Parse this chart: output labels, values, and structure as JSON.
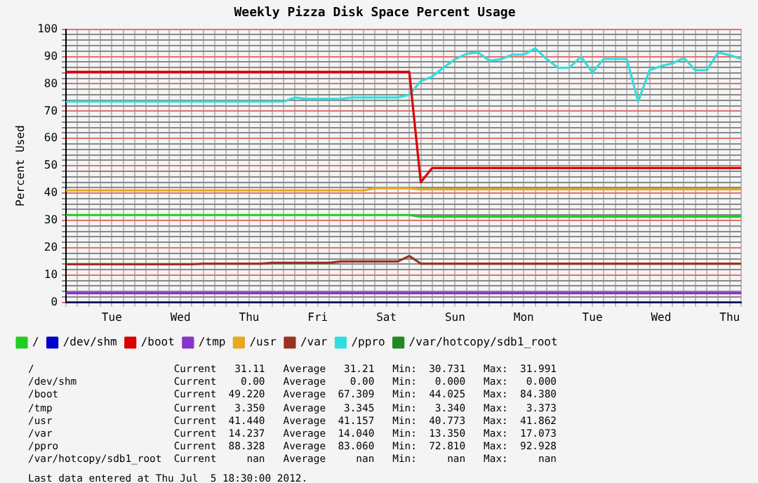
{
  "chart_data": {
    "type": "line",
    "title": "Weekly Pizza Disk Space Percent Usage",
    "ylabel": "Percent Used",
    "categories": [
      null,
      null,
      null,
      null,
      "Tue",
      null,
      null,
      null,
      null,
      null,
      "Wed",
      null,
      null,
      null,
      null,
      null,
      "Thu",
      null,
      null,
      null,
      null,
      null,
      "Fri",
      null,
      null,
      null,
      null,
      null,
      "Sat",
      null,
      null,
      null,
      null,
      null,
      "Sun",
      null,
      null,
      null,
      null,
      null,
      "Mon",
      null,
      null,
      null,
      null,
      null,
      "Tue",
      null,
      null,
      null,
      null,
      null,
      "Wed",
      null,
      null,
      null,
      null,
      null,
      "Thu",
      null
    ],
    "ylim": [
      0,
      100
    ],
    "yticks": [
      0,
      {
        "value": 2,
        "label": null
      },
      {
        "value": 4,
        "label": null
      },
      {
        "value": 6,
        "label": null
      },
      {
        "value": 8,
        "label": null
      },
      10,
      {
        "value": 12,
        "label": null
      },
      {
        "value": 14,
        "label": null
      },
      {
        "value": 16,
        "label": null
      },
      {
        "value": 18,
        "label": null
      },
      20,
      {
        "value": 22,
        "label": null
      },
      {
        "value": 24,
        "label": null
      },
      {
        "value": 26,
        "label": null
      },
      {
        "value": 28,
        "label": null
      },
      30,
      {
        "value": 32,
        "label": null
      },
      {
        "value": 34,
        "label": null
      },
      {
        "value": 36,
        "label": null
      },
      {
        "value": 38,
        "label": null
      },
      40,
      {
        "value": 42,
        "label": null
      },
      {
        "value": 44,
        "label": null
      },
      {
        "value": 46,
        "label": null
      },
      {
        "value": 48,
        "label": null
      },
      50,
      {
        "value": 52,
        "label": null
      },
      {
        "value": 54,
        "label": null
      },
      {
        "value": 56,
        "label": null
      },
      {
        "value": 58,
        "label": null
      },
      60,
      {
        "value": 62,
        "label": null
      },
      {
        "value": 64,
        "label": null
      },
      {
        "value": 66,
        "label": null
      },
      {
        "value": 68,
        "label": null
      },
      70,
      {
        "value": 72,
        "label": null
      },
      {
        "value": 74,
        "label": null
      },
      {
        "value": 76,
        "label": null
      },
      {
        "value": 78,
        "label": null
      },
      80,
      {
        "value": 82,
        "label": null
      },
      {
        "value": 84,
        "label": null
      },
      {
        "value": 86,
        "label": null
      },
      {
        "value": 88,
        "label": null
      },
      90,
      {
        "value": 92,
        "label": null
      },
      {
        "value": 94,
        "label": null
      },
      {
        "value": 96,
        "label": null
      },
      {
        "value": 98,
        "label": null
      },
      100
    ],
    "grid": true,
    "legend": "bottom",
    "marker": "none",
    "line_style": "solid",
    "series": [
      {
        "name": "/",
        "color": "#22cc22",
        "values": [
          32,
          32,
          32,
          32,
          32,
          32,
          32,
          32,
          32,
          32,
          32,
          32,
          32,
          32,
          32,
          32,
          32,
          32,
          32,
          32,
          32,
          32,
          32,
          32,
          32,
          32,
          32,
          32,
          32,
          32,
          32,
          31.4,
          31.4,
          31.4,
          31.4,
          31.4,
          31.4,
          31.4,
          31.4,
          31.4,
          31.4,
          31.4,
          31.4,
          31.4,
          31.4,
          31.4,
          31.4,
          31.4,
          31.4,
          31.4,
          31.4,
          31.4,
          31.4,
          31.4,
          31.4,
          31.4,
          31.4,
          31.4,
          31.4,
          31.4
        ]
      },
      {
        "name": "/dev/shm",
        "color": "#0000cc",
        "values": [
          0,
          0,
          0,
          0,
          0,
          0,
          0,
          0,
          0,
          0,
          0,
          0,
          0,
          0,
          0,
          0,
          0,
          0,
          0,
          0,
          0,
          0,
          0,
          0,
          0,
          0,
          0,
          0,
          0,
          0,
          0,
          0,
          0,
          0,
          0,
          0,
          0,
          0,
          0,
          0,
          0,
          0,
          0,
          0,
          0,
          0,
          0,
          0,
          0,
          0,
          0,
          0,
          0,
          0,
          0,
          0,
          0,
          0,
          0,
          0
        ]
      },
      {
        "name": "/boot",
        "color": "#dd0000",
        "values": [
          84.4,
          84.4,
          84.4,
          84.4,
          84.4,
          84.4,
          84.4,
          84.4,
          84.4,
          84.4,
          84.4,
          84.4,
          84.4,
          84.4,
          84.4,
          84.4,
          84.4,
          84.4,
          84.4,
          84.4,
          84.4,
          84.4,
          84.4,
          84.4,
          84.4,
          84.4,
          84.4,
          84.4,
          84.4,
          84.4,
          84.4,
          44,
          49.2,
          49.2,
          49.2,
          49.2,
          49.2,
          49.2,
          49.2,
          49.2,
          49.2,
          49.2,
          49.2,
          49.2,
          49.2,
          49.2,
          49.2,
          49.2,
          49.2,
          49.2,
          49.2,
          49.2,
          49.2,
          49.2,
          49.2,
          49.2,
          49.2,
          49.2,
          49.2,
          49.2
        ]
      },
      {
        "name": "/tmp",
        "color": "#8833cc",
        "values": [
          3.4,
          3.4,
          3.4,
          3.4,
          3.4,
          3.4,
          3.4,
          3.4,
          3.4,
          3.4,
          3.4,
          3.4,
          3.4,
          3.4,
          3.4,
          3.4,
          3.4,
          3.4,
          3.4,
          3.4,
          3.4,
          3.4,
          3.4,
          3.4,
          3.4,
          3.4,
          3.4,
          3.4,
          3.4,
          3.4,
          3.4,
          3.4,
          3.4,
          3.4,
          3.4,
          3.4,
          3.4,
          3.4,
          3.4,
          3.4,
          3.4,
          3.4,
          3.4,
          3.4,
          3.4,
          3.4,
          3.4,
          3.4,
          3.4,
          3.4,
          3.4,
          3.4,
          3.4,
          3.4,
          3.4,
          3.4,
          3.4,
          3.4,
          3.4,
          3.4
        ]
      },
      {
        "name": "/usr",
        "color": "#e8a820",
        "values": [
          41,
          41,
          41,
          41,
          41,
          41,
          41,
          41,
          41,
          41,
          41,
          41,
          41,
          41,
          41,
          41,
          41,
          41,
          41,
          41,
          41,
          41,
          41,
          41,
          41,
          41,
          41,
          41.8,
          41.8,
          41.8,
          41.8,
          41.4,
          41.4,
          41.4,
          41.4,
          41.4,
          41.4,
          41.4,
          41.4,
          41.4,
          41.4,
          41.4,
          41.4,
          41.4,
          41.4,
          41.4,
          41.4,
          41.4,
          41.4,
          41.4,
          41.4,
          41.4,
          41.4,
          41.4,
          41.4,
          41.4,
          41.4,
          41.4,
          41.4,
          41.4
        ]
      },
      {
        "name": "/var",
        "color": "#993322",
        "values": [
          14,
          14,
          14,
          14,
          14,
          14,
          14,
          14,
          14,
          14,
          14,
          14,
          14.2,
          14.2,
          14.2,
          14.2,
          14.2,
          14.2,
          14.5,
          14.5,
          14.5,
          14.5,
          14.5,
          14.5,
          15,
          15,
          15,
          15,
          15,
          15,
          17,
          14.2,
          14.2,
          14.2,
          14.2,
          14.2,
          14.2,
          14.2,
          14.2,
          14.2,
          14.2,
          14.2,
          14.2,
          14.2,
          14.2,
          14.2,
          14.2,
          14.2,
          14.2,
          14.2,
          14.2,
          14.2,
          14.2,
          14.2,
          14.2,
          14.2,
          14.2,
          14.2,
          14.2,
          14.2
        ]
      },
      {
        "name": "/ppro",
        "color": "#33dddd",
        "values": [
          73.5,
          73.5,
          73.5,
          73.5,
          73.5,
          73.5,
          73.5,
          73.5,
          73.5,
          73.5,
          73.5,
          73.5,
          73.5,
          73.5,
          73.5,
          73.5,
          73.5,
          73.5,
          73.5,
          73.5,
          75,
          74.5,
          74.5,
          74.5,
          74.5,
          75,
          75,
          75,
          75,
          75,
          76,
          81,
          82.6,
          86,
          89,
          91,
          91.5,
          88.5,
          89,
          90.7,
          90.7,
          93,
          89.1,
          85.9,
          85.9,
          90,
          84.2,
          89.1,
          89.1,
          89.1,
          73.6,
          85,
          86.5,
          87.5,
          89.5,
          85,
          85,
          91.5,
          90.5,
          89.1
        ]
      },
      {
        "name": "/var/hotcopy/sdb1_root",
        "color": "#228822",
        "values": [
          null,
          null,
          null,
          null,
          null,
          null,
          null,
          null,
          null,
          null,
          null,
          null,
          null,
          null,
          null,
          null,
          null,
          null,
          null,
          null,
          null,
          null,
          null,
          null,
          null,
          null,
          null,
          null,
          null,
          null,
          null,
          null,
          null,
          null,
          null,
          null,
          null,
          null,
          null,
          null,
          null,
          null,
          null,
          null,
          null,
          null,
          null,
          null,
          null,
          null,
          null,
          null,
          null,
          null,
          null,
          null,
          null,
          null,
          null,
          null
        ]
      }
    ],
    "annotations": [
      "/                       Current   31.11   Average   31.21   Min:  30.731   Max:  31.991",
      "/dev/shm                Current    0.00   Average    0.00   Min:   0.000   Max:   0.000",
      "/boot                   Current  49.220   Average  67.309   Min:  44.025   Max:  84.380",
      "/tmp                    Current   3.350   Average   3.345   Min:   3.340   Max:   3.373",
      "/usr                    Current  41.440   Average  41.157   Min:  40.773   Max:  41.862",
      "/var                    Current  14.237   Average  14.040   Min:  13.350   Max:  17.073",
      "/ppro                   Current  88.328   Average  83.060   Min:  72.810   Max:  92.928",
      "/var/hotcopy/sdb1_root  Current     nan   Average     nan   Min:     nan   Max:     nan",
      "Last data entered at Thu Jul  5 18:30:00 2012."
    ]
  }
}
